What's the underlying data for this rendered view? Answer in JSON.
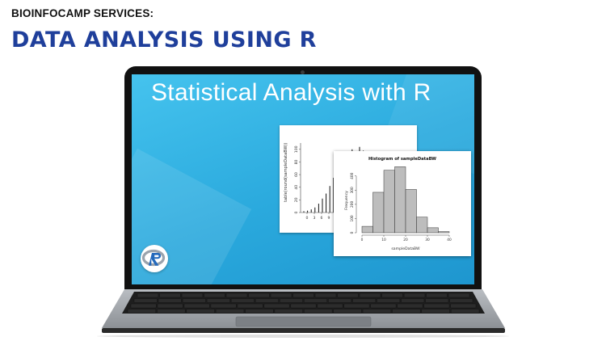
{
  "header": {
    "eyebrow": "BIOINFOCAMP SERVICES:",
    "headline": "DATA ANALYSIS USING R"
  },
  "screen": {
    "title": "Statistical Analysis with R",
    "accent_color": "#2aa9dd"
  },
  "plot_back": {
    "ylabel": "table(round(sampleDataBW))",
    "yticks": [
      "0",
      "20",
      "40",
      "60",
      "80",
      "100"
    ],
    "xticks": [
      "0",
      "3",
      "6",
      "9"
    ]
  },
  "plot_front": {
    "title": "Histogram of sampleDataBW",
    "xlabel": "sampleDataBW",
    "ylabel": "Frequency",
    "yticks": [
      "0",
      "100",
      "200",
      "300",
      "400"
    ],
    "xticks": [
      "0",
      "10",
      "20",
      "30",
      "40"
    ],
    "bar_color": "#bdbdbd"
  },
  "icons": {
    "r_logo": "r-language-logo"
  },
  "chart_data": [
    {
      "type": "bar",
      "title": "",
      "ylabel": "table(round(sampleDataBW))",
      "xlabel": "",
      "ylim": [
        0,
        110
      ],
      "values": [
        2,
        3,
        5,
        8,
        14,
        22,
        30,
        42,
        55,
        68,
        72,
        85,
        95,
        100,
        96,
        104,
        98,
        90,
        82,
        60
      ]
    },
    {
      "type": "bar",
      "title": "Histogram of sampleDataBW",
      "xlabel": "sampleDataBW",
      "ylabel": "Frequency",
      "xlim": [
        0,
        40
      ],
      "ylim": [
        0,
        450
      ],
      "categories": [
        "0-5",
        "5-10",
        "10-15",
        "15-20",
        "20-25",
        "25-30",
        "30-35",
        "35-40"
      ],
      "values": [
        45,
        285,
        440,
        465,
        305,
        110,
        35,
        8
      ]
    }
  ]
}
